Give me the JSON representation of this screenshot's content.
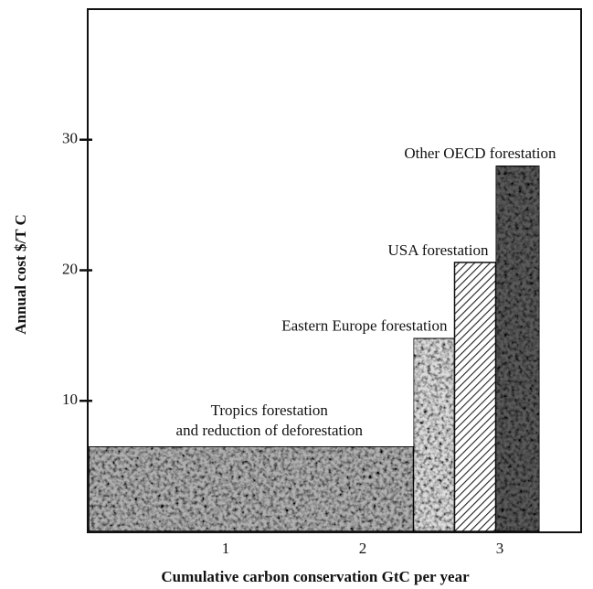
{
  "chart_data": {
    "type": "variable_width_bar",
    "xlabel": "Cumulative carbon conservation GtC per year",
    "ylabel": "Annual cost $/T C",
    "xlim": [
      0,
      3.6
    ],
    "ylim": [
      0,
      40
    ],
    "xticks": [
      1,
      2,
      3
    ],
    "yticks": [
      10,
      20,
      30
    ],
    "bars": [
      {
        "label": [
          "Tropics forestation",
          "and reduction of deforestation"
        ],
        "x_start": 0,
        "x_end": 2.37,
        "value": 6.5,
        "color": "#b0b0b0",
        "pattern": "speckle"
      },
      {
        "label": [
          "Eastern Europe forestation"
        ],
        "x_start": 2.37,
        "x_end": 2.67,
        "value": 14.8,
        "color": "#dcdcdc",
        "pattern": "stipple"
      },
      {
        "label": [
          "USA forestation"
        ],
        "x_start": 2.67,
        "x_end": 2.97,
        "value": 20.6,
        "color": "#ffffff",
        "pattern": "hatch"
      },
      {
        "label": [
          "Other OECD forestation"
        ],
        "x_start": 2.97,
        "x_end": 3.29,
        "value": 28.0,
        "color": "#5a5a5a",
        "pattern": "speckle"
      }
    ]
  }
}
